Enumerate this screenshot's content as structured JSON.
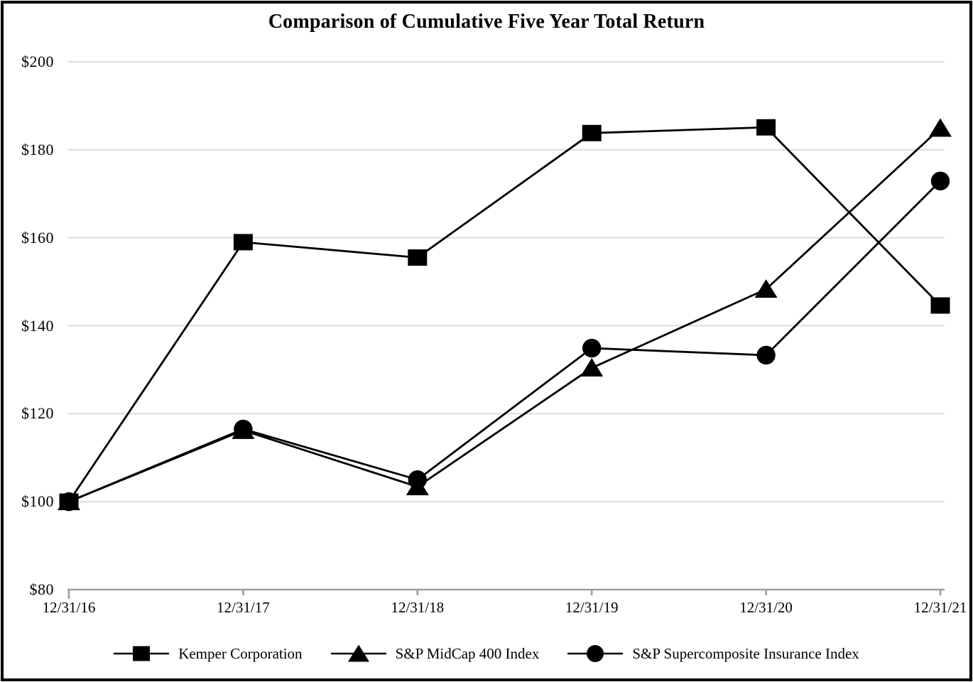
{
  "chart_data": {
    "type": "line",
    "title": "Comparison of Cumulative Five Year Total Return",
    "categories": [
      "12/31/16",
      "12/31/17",
      "12/31/18",
      "12/31/19",
      "12/31/20",
      "12/31/21"
    ],
    "y_ticks": [
      {
        "label": "$200",
        "value": 200
      },
      {
        "label": "$180",
        "value": 180
      },
      {
        "label": "$160",
        "value": 160
      },
      {
        "label": "$140",
        "value": 140
      },
      {
        "label": "$120",
        "value": 120
      },
      {
        "label": "$100",
        "value": 100
      },
      {
        "label": "$80",
        "value": 80
      }
    ],
    "ylim": [
      80,
      200
    ],
    "xlabel": "",
    "ylabel": "",
    "grid": "horizontal-gridlines-on",
    "legend_position": "bottom",
    "colors": {
      "series": "#000000",
      "gridline": "#dcdcdc",
      "axis": "#9e9e9e",
      "background": "#ffffff",
      "border": "#000000"
    },
    "series": [
      {
        "name": "Kemper Corporation",
        "marker": "square",
        "values": [
          100.0,
          159.0,
          155.5,
          183.8,
          185.1,
          144.6
        ]
      },
      {
        "name": "S&P MidCap 400 Index",
        "marker": "triangle",
        "values": [
          100.0,
          116.2,
          103.4,
          130.4,
          148.3,
          184.9
        ]
      },
      {
        "name": "S&P Supercomposite Insurance Index",
        "marker": "circle",
        "values": [
          100.0,
          116.5,
          105.0,
          134.9,
          133.3,
          172.9
        ]
      }
    ]
  }
}
